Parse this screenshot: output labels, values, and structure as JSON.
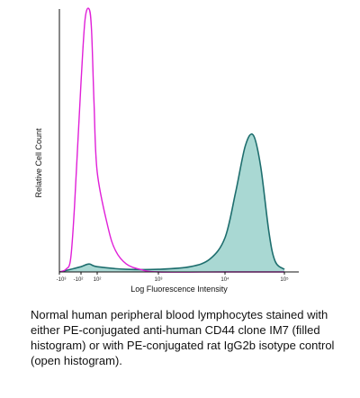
{
  "chart_data": {
    "type": "area",
    "xlabel": "Log Fluorescence Intensity",
    "ylabel": "Relative Cell Count",
    "x_scale": "log",
    "grid": false,
    "legend": "none",
    "x_ticks": [
      "-10³",
      "-10²",
      "10²",
      "10³",
      "10⁴",
      "10⁵"
    ],
    "series": [
      {
        "label": "PE-conjugated rat IgG2b isotype control (open histogram)",
        "style": "open",
        "color": "#e020d8",
        "x": [
          -1000,
          -500,
          -300,
          -200,
          -100,
          -50,
          0,
          30,
          60,
          100,
          150,
          200,
          300,
          500,
          1000,
          10000,
          100000
        ],
        "y": [
          0.0,
          0.01,
          0.05,
          0.25,
          0.72,
          0.96,
          1.0,
          0.92,
          0.65,
          0.38,
          0.17,
          0.08,
          0.03,
          0.01,
          0.0,
          0.0,
          0.0
        ]
      },
      {
        "label": "PE-conjugated anti-human CD44 clone IM7 (filled histogram)",
        "style": "filled",
        "color": "#1e6e6e",
        "fill": "#a9d8d3",
        "x": [
          -1000,
          -300,
          -100,
          0,
          100,
          300,
          1000,
          3000,
          6000,
          10000,
          15000,
          22000,
          30000,
          40000,
          55000,
          70000,
          100000
        ],
        "y": [
          0.0,
          0.01,
          0.02,
          0.03,
          0.02,
          0.01,
          0.01,
          0.02,
          0.05,
          0.13,
          0.3,
          0.48,
          0.52,
          0.4,
          0.15,
          0.04,
          0.01
        ]
      }
    ]
  },
  "caption": "Normal human peripheral blood lymphocytes stained with either PE-conjugated anti-human CD44 clone IM7 (filled histogram) or with PE-conjugated rat IgG2b isotype control (open histogram)."
}
